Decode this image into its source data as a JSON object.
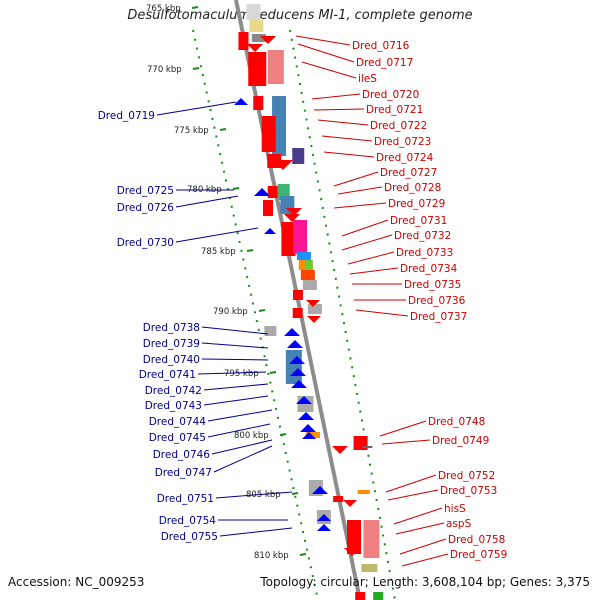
{
  "title": "Desulfotomaculum reducens MI-1, complete genome",
  "footer": {
    "accession": "Accession: NC_009253",
    "topology": "Topology: circular; Length: 3,608,104 bp; Genes: 3,375"
  },
  "colors": {
    "backbone": "#8c8c8c",
    "tick_marks": "#1a8a1a",
    "forward_label": "#cc0000",
    "reverse_label": "#00008b"
  },
  "position_ticks": [
    "765 kbp",
    "770 kbp",
    "775 kbp",
    "780 kbp",
    "785 kbp",
    "790 kbp",
    "795 kbp",
    "800 kbp",
    "805 kbp",
    "810 kbp"
  ],
  "forward_labels": [
    "Dred_0716",
    "Dred_0717",
    "ileS",
    "Dred_0720",
    "Dred_0721",
    "Dred_0722",
    "Dred_0723",
    "Dred_0724",
    "Dred_0727",
    "Dred_0728",
    "Dred_0729",
    "Dred_0731",
    "Dred_0732",
    "Dred_0733",
    "Dred_0734",
    "Dred_0735",
    "Dred_0736",
    "Dred_0737",
    "Dred_0748",
    "Dred_0749",
    "Dred_0752",
    "Dred_0753",
    "hisS",
    "aspS",
    "Dred_0758",
    "Dred_0759"
  ],
  "reverse_labels": [
    "Dred_0719",
    "Dred_0725",
    "Dred_0726",
    "Dred_0730",
    "Dred_0738",
    "Dred_0739",
    "Dred_0740",
    "Dred_0741",
    "Dred_0742",
    "Dred_0743",
    "Dred_0744",
    "Dred_0745",
    "Dred_0746",
    "Dred_0747",
    "Dred_0751",
    "Dred_0754",
    "Dred_0755"
  ]
}
